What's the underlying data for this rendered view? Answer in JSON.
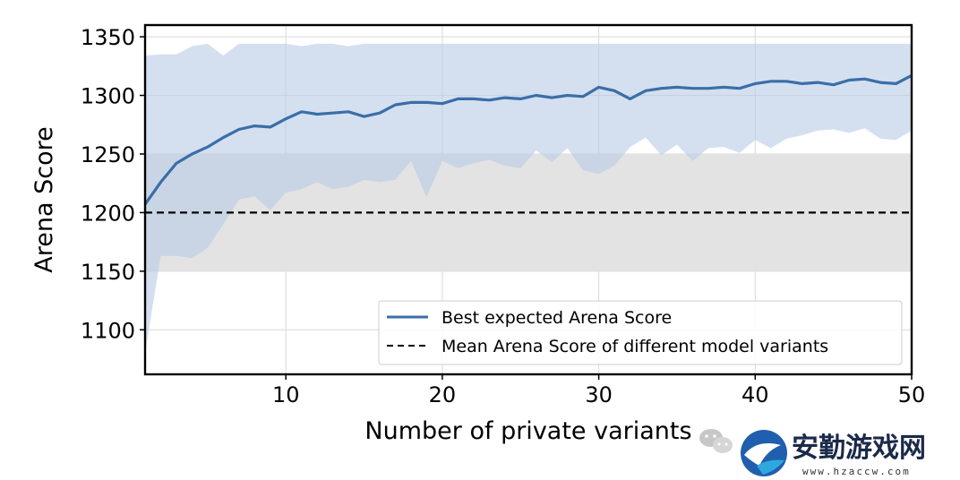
{
  "chart_data": {
    "type": "line",
    "xlabel": "Number of private variants",
    "ylabel": "Arena Score",
    "xlim": [
      1,
      50
    ],
    "ylim": [
      1062,
      1360
    ],
    "xticks": [
      10,
      20,
      30,
      40,
      50
    ],
    "yticks": [
      1100,
      1150,
      1200,
      1250,
      1300,
      1350
    ],
    "grid": true,
    "legend_position": "lower-right",
    "series": [
      {
        "name": "Best expected Arena Score",
        "color": "#3a6ea8",
        "x": [
          1,
          2,
          3,
          4,
          5,
          6,
          7,
          8,
          9,
          10,
          11,
          12,
          13,
          14,
          15,
          16,
          17,
          18,
          19,
          20,
          21,
          22,
          23,
          24,
          25,
          26,
          27,
          28,
          29,
          30,
          31,
          32,
          33,
          34,
          35,
          36,
          37,
          38,
          39,
          40,
          41,
          42,
          43,
          44,
          45,
          46,
          47,
          48,
          49,
          50
        ],
        "values": [
          1207,
          1226,
          1242,
          1250,
          1256,
          1264,
          1271,
          1274,
          1273,
          1280,
          1286,
          1284,
          1285,
          1286,
          1282,
          1285,
          1292,
          1294,
          1294,
          1293,
          1297,
          1297,
          1296,
          1298,
          1297,
          1300,
          1298,
          1300,
          1299,
          1307,
          1304,
          1297,
          1304,
          1306,
          1307,
          1306,
          1306,
          1307,
          1306,
          1310,
          1312,
          1312,
          1310,
          1311,
          1309,
          1313,
          1314,
          1311,
          1310,
          1317
        ],
        "band_upper": [
          1334,
          1335,
          1335,
          1342,
          1344,
          1334,
          1344,
          1344,
          1344,
          1344,
          1342,
          1344,
          1344,
          1342,
          1344,
          1344,
          1344,
          1344,
          1344,
          1344,
          1344,
          1344,
          1344,
          1344,
          1344,
          1344,
          1344,
          1344,
          1344,
          1344,
          1344,
          1344,
          1344,
          1344,
          1344,
          1344,
          1344,
          1344,
          1344,
          1344,
          1344,
          1344,
          1344,
          1344,
          1344,
          1344,
          1344,
          1344,
          1344,
          1344
        ],
        "band_lower": [
          1080,
          1163,
          1163,
          1161,
          1170,
          1190,
          1211,
          1214,
          1202,
          1217,
          1220,
          1226,
          1220,
          1222,
          1228,
          1226,
          1228,
          1244,
          1213,
          1244,
          1238,
          1242,
          1245,
          1240,
          1238,
          1253,
          1243,
          1255,
          1236,
          1233,
          1240,
          1256,
          1264,
          1249,
          1258,
          1244,
          1255,
          1256,
          1251,
          1262,
          1255,
          1263,
          1266,
          1270,
          1271,
          1268,
          1272,
          1263,
          1262,
          1270
        ],
        "band_color": "#b9cde6"
      },
      {
        "name": "Mean Arena Score of different model variants",
        "color": "#000000",
        "style": "dashed",
        "constant": 1200,
        "range_band": [
          1150,
          1250
        ],
        "range_band_color": "#e3e3e3"
      }
    ]
  },
  "watermark": {
    "title": "安勤游戏网",
    "url": "www.hzaccw.com"
  }
}
